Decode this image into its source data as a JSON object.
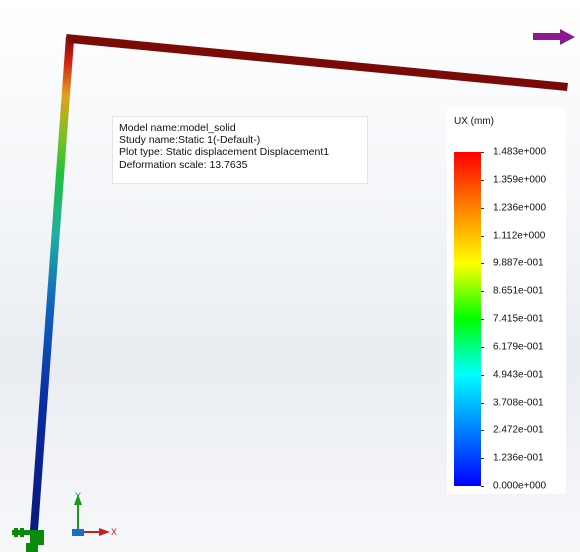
{
  "info": {
    "model_name": "Model name:model_solid",
    "study_name": "Study name:Static 1(-Default-)",
    "plot_type": "Plot type: Static displacement Displacement1",
    "deformation_scale": "Deformation scale: 13.7635"
  },
  "legend": {
    "title": "UX (mm)",
    "labels": [
      "1.483e+000",
      "1.359e+000",
      "1.236e+000",
      "1.112e+000",
      "9.887e-001",
      "8.651e-001",
      "7.415e-001",
      "6.179e-001",
      "4.943e-001",
      "3.708e-001",
      "2.472e-001",
      "1.236e-001",
      "0.000e+000"
    ],
    "colors": [
      "#ff0000",
      "#ff8000",
      "#ffff00",
      "#00ff00",
      "#00ffff",
      "#0080ff",
      "#0000ff"
    ]
  },
  "triad": {
    "y_label": "Y",
    "x_label": "X"
  },
  "icons": {
    "load_arrow": "force-arrow-icon",
    "fixture": "fixed-support-icon",
    "triad": "axis-triad-icon"
  },
  "colors": {
    "beam_top": "#7a0a06",
    "load_arrow": "#8a1a8e",
    "fixture": "#0a8a0a",
    "triad_y": "#1a9a1a",
    "triad_x": "#c02020",
    "background": "#eceff3"
  }
}
